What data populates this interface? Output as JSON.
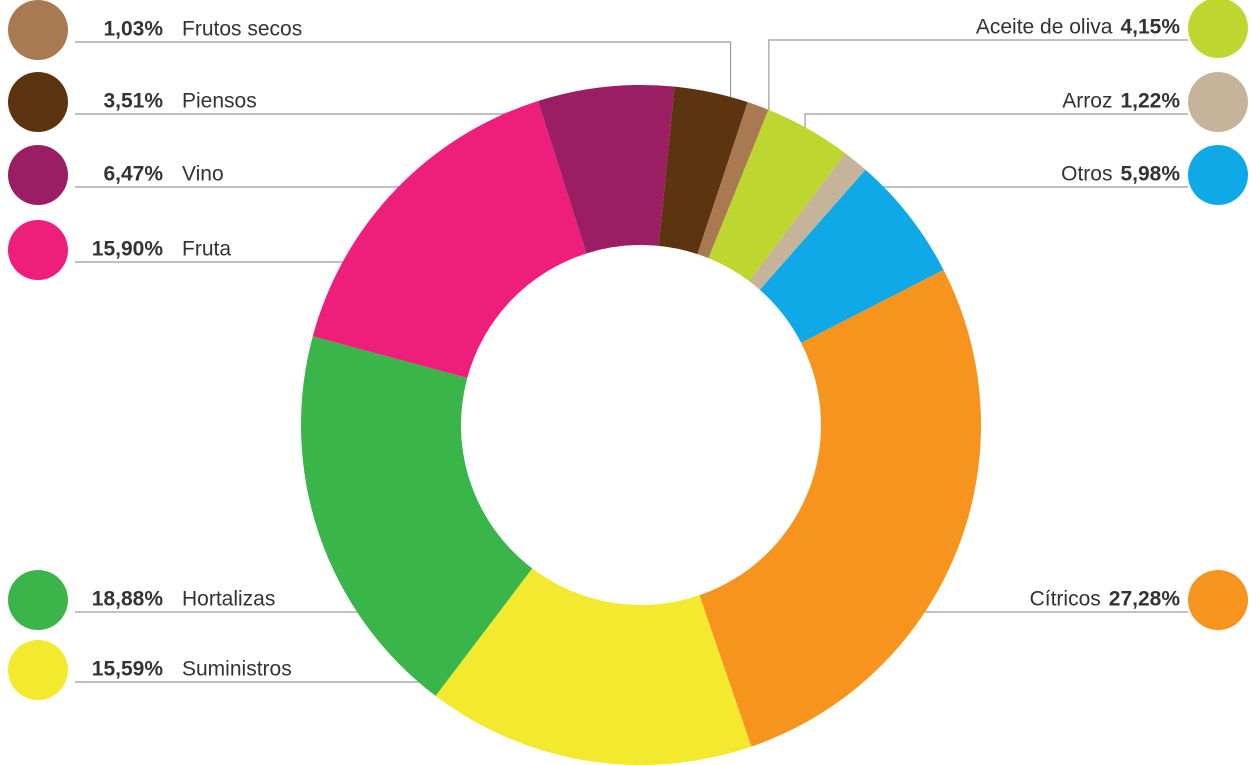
{
  "chart_data": {
    "type": "donut",
    "categories": [
      "Aceite de oliva",
      "Arroz",
      "Otros",
      "Cítricos",
      "Suministros",
      "Hortalizas",
      "Fruta",
      "Vino",
      "Piensos",
      "Frutos secos"
    ],
    "values": [
      4.15,
      1.22,
      5.98,
      27.28,
      15.59,
      18.88,
      15.9,
      6.47,
      3.51,
      1.03
    ],
    "value_labels": [
      "4,15%",
      "1,22%",
      "5,98%",
      "27,28%",
      "15,59%",
      "18,88%",
      "15,90%",
      "6,47%",
      "3,51%",
      "1,03%"
    ],
    "colors": [
      "#bed730",
      "#c5b49a",
      "#0ea9e6",
      "#f7941d",
      "#f3e92e",
      "#3ab54a",
      "#ee1f7b",
      "#9b1d64",
      "#5c3510",
      "#a97a52"
    ]
  }
}
